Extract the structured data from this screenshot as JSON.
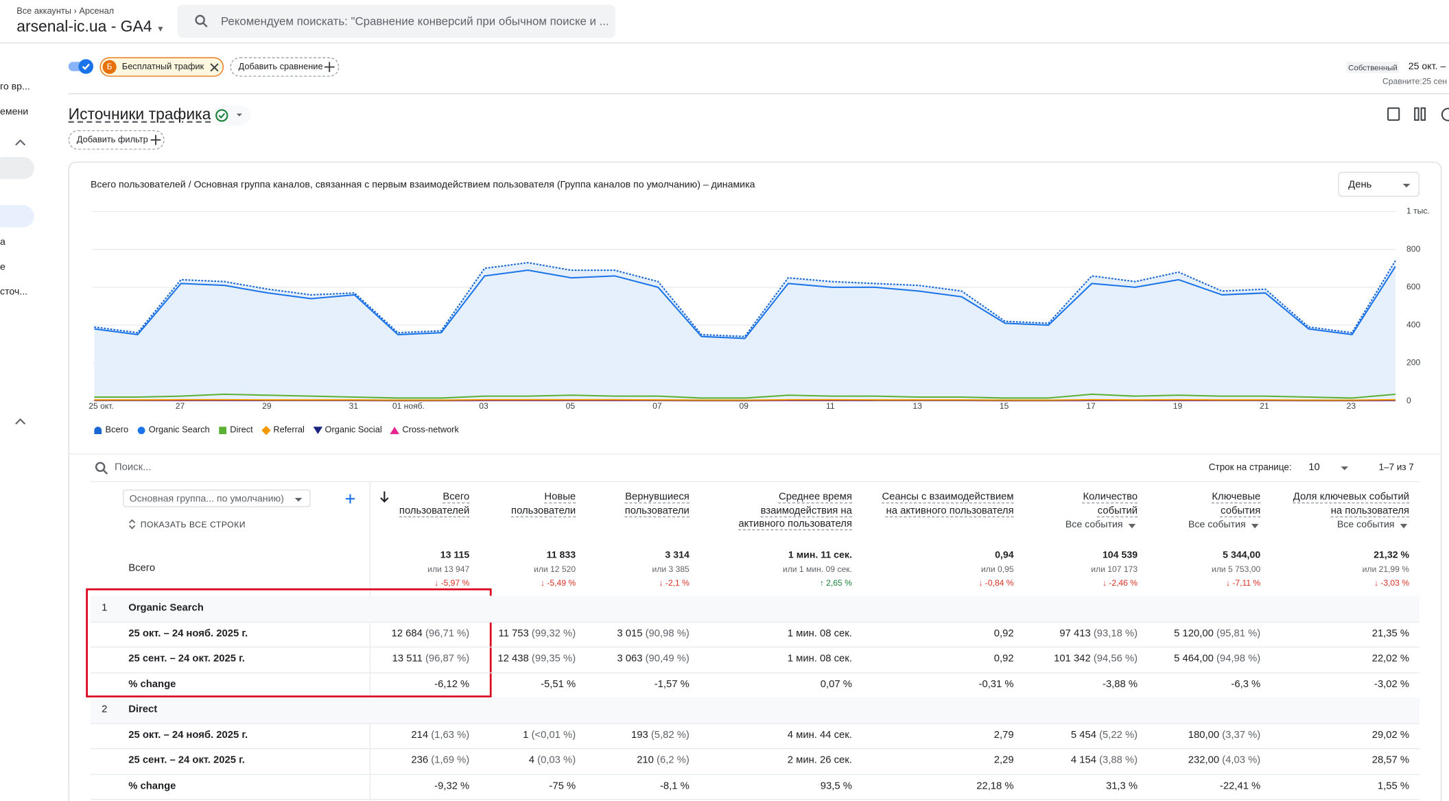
{
  "header": {
    "breadcrumb": [
      "Все аккаунты",
      "Арсенал"
    ],
    "property": "arsenal-ic.ua - GA4",
    "search_placeholder": "Рекомендуем поискать: \"Сравнение конверсий при обычном поиске и ..."
  },
  "sidebar": [
    "го вр...",
    "емени",
    "а",
    "е",
    "сточ..."
  ],
  "comparisons": {
    "badge": "Б",
    "chip": "Бесплатный трафик",
    "add": "Добавить сравнение"
  },
  "date_range": {
    "label": "Собственный",
    "range": "25 окт. –",
    "compare": "Сравните:25 сен"
  },
  "report": {
    "title": "Источники трафика",
    "add_filter": "Добавить фильтр"
  },
  "chart_data": {
    "type": "line",
    "title": "Всего пользователей / Основная группа каналов, связанная с первым взаимодействием пользователя (Группа каналов по умолчанию) – динамика",
    "granularity": "День",
    "categories": [
      "25 окт.",
      null,
      "27",
      null,
      "29",
      null,
      "31",
      "01 нояб.",
      null,
      "03",
      null,
      "05",
      null,
      "07",
      null,
      "09",
      null,
      "11",
      null,
      "13",
      null,
      "15",
      null,
      "17",
      null,
      "19",
      null,
      "21",
      null,
      "23",
      null
    ],
    "series": [
      {
        "name": "Всего",
        "color": "#1967d2",
        "marker": "drop",
        "dashed": true,
        "area": "#e5f0fc",
        "values": [
          390,
          360,
          640,
          630,
          590,
          560,
          570,
          360,
          370,
          700,
          730,
          690,
          690,
          630,
          350,
          340,
          650,
          630,
          620,
          610,
          580,
          420,
          410,
          660,
          630,
          680,
          580,
          590,
          390,
          360,
          740
        ]
      },
      {
        "name": "Organic Search",
        "color": "#1a73e8",
        "marker": "circle",
        "values": [
          380,
          350,
          620,
          610,
          570,
          540,
          560,
          350,
          360,
          660,
          690,
          650,
          660,
          600,
          340,
          330,
          620,
          600,
          600,
          580,
          550,
          410,
          400,
          620,
          600,
          640,
          560,
          570,
          380,
          350,
          710
        ]
      },
      {
        "name": "Direct",
        "color": "#5bb033",
        "marker": "square",
        "values": [
          20,
          20,
          25,
          35,
          30,
          25,
          20,
          15,
          15,
          25,
          25,
          30,
          25,
          25,
          15,
          15,
          30,
          25,
          25,
          20,
          20,
          15,
          15,
          35,
          25,
          30,
          25,
          25,
          20,
          15,
          35
        ]
      },
      {
        "name": "Referral",
        "color": "#f29900",
        "marker": "diamond",
        "values": [
          5,
          5,
          6,
          6,
          5,
          5,
          5,
          4,
          4,
          6,
          6,
          6,
          6,
          5,
          4,
          4,
          6,
          6,
          5,
          5,
          5,
          4,
          4,
          6,
          5,
          6,
          5,
          5,
          4,
          4,
          6
        ]
      },
      {
        "name": "Organic Social",
        "color": "#1a237e",
        "marker": "triangle-down",
        "values": [
          3,
          3,
          4,
          4,
          3,
          3,
          3,
          2,
          2,
          4,
          4,
          4,
          4,
          3,
          2,
          2,
          4,
          4,
          3,
          3,
          3,
          2,
          2,
          4,
          3,
          4,
          3,
          3,
          2,
          2,
          4
        ]
      },
      {
        "name": "Cross-network",
        "color": "#e52592",
        "marker": "triangle-up",
        "values": [
          2,
          2,
          2,
          2,
          2,
          2,
          2,
          1,
          1,
          2,
          2,
          2,
          2,
          2,
          1,
          1,
          2,
          2,
          2,
          2,
          2,
          1,
          1,
          2,
          2,
          2,
          2,
          2,
          1,
          1,
          2
        ]
      }
    ],
    "ylim": [
      0,
      1000
    ],
    "yticks": [
      0,
      200,
      400,
      600,
      800,
      {
        "value": 1000,
        "label": "1 тыс."
      }
    ],
    "grid": true,
    "legend": "bottom-left"
  },
  "table": {
    "search_placeholder": "Поиск...",
    "rows_per_page_label": "Строк на странице:",
    "rows_per_page": "10",
    "pagination": "1–7 из 7",
    "dimension": "Основная группа... по умолчанию)",
    "show_all": "ПОКАЗАТЬ ВСЕ СТРОКИ",
    "columns": [
      {
        "title": "Всего пользователей"
      },
      {
        "title": "Новые пользователи"
      },
      {
        "title": "Вернувшиеся пользователи"
      },
      {
        "title": "Среднее время взаимодействия на активного пользователя"
      },
      {
        "title": "Сеансы с взаимодействием на активного пользователя"
      },
      {
        "title": "Количество событий",
        "filter": "Все события"
      },
      {
        "title": "Ключевые события",
        "filter": "Все события"
      },
      {
        "title": "Доля ключевых событий на пользователя",
        "filter": "Все события"
      }
    ],
    "totals": {
      "label": "Всего",
      "cells": [
        {
          "value": "13 115",
          "compare": "или 13 947",
          "change": "↓ -5,97 %",
          "trend": "down"
        },
        {
          "value": "11 833",
          "compare": "или 12 520",
          "change": "↓ -5,49 %",
          "trend": "down"
        },
        {
          "value": "3 314",
          "compare": "или 3 385",
          "change": "↓ -2,1 %",
          "trend": "down"
        },
        {
          "value": "1 мин. 11 сек.",
          "compare": "или 1 мин. 09 сек.",
          "change": "↑ 2,65 %",
          "trend": "up"
        },
        {
          "value": "0,94",
          "compare": "или 0,95",
          "change": "↓ -0,84 %",
          "trend": "down"
        },
        {
          "value": "104 539",
          "compare": "или 107 173",
          "change": "↓ -2,46 %",
          "trend": "down"
        },
        {
          "value": "5 344,00",
          "compare": "или 5 753,00",
          "change": "↓ -7,11 %",
          "trend": "down"
        },
        {
          "value": "21,32 %",
          "compare": "или 21,99 %",
          "change": "↓ -3,03 %",
          "trend": "down"
        }
      ]
    },
    "groups": [
      {
        "index": 1,
        "name": "Organic Search",
        "rows": [
          {
            "label": "25 окт. – 24 нояб. 2025 г.",
            "cells": [
              [
                "12 684",
                "(96,71 %)"
              ],
              [
                "11 753",
                "(99,32 %)"
              ],
              [
                "3 015",
                "(90,98 %)"
              ],
              [
                "1 мин. 08 сек."
              ],
              [
                "0,92"
              ],
              [
                "97 413",
                "(93,18 %)"
              ],
              [
                "5 120,00",
                "(95,81 %)"
              ],
              [
                "21,35 %"
              ]
            ]
          },
          {
            "label": "25 сент. – 24 окт. 2025 г.",
            "cells": [
              [
                "13 511",
                "(96,87 %)"
              ],
              [
                "12 438",
                "(99,35 %)"
              ],
              [
                "3 063",
                "(90,49 %)"
              ],
              [
                "1 мин. 08 сек."
              ],
              [
                "0,92"
              ],
              [
                "101 342",
                "(94,56 %)"
              ],
              [
                "5 464,00",
                "(94,98 %)"
              ],
              [
                "22,02 %"
              ]
            ]
          },
          {
            "label": "% change",
            "cells": [
              [
                "-6,12 %"
              ],
              [
                "-5,51 %"
              ],
              [
                "-1,57 %"
              ],
              [
                "0,07 %"
              ],
              [
                "-0,31 %"
              ],
              [
                "-3,88 %"
              ],
              [
                "-6,3 %"
              ],
              [
                "-3,02 %"
              ]
            ]
          }
        ]
      },
      {
        "index": 2,
        "name": "Direct",
        "rows": [
          {
            "label": "25 окт. – 24 нояб. 2025 г.",
            "cells": [
              [
                "214",
                "(1,63 %)"
              ],
              [
                "1",
                "(<0,01 %)"
              ],
              [
                "193",
                "(5,82 %)"
              ],
              [
                "4 мин. 44 сек."
              ],
              [
                "2,79"
              ],
              [
                "5 454",
                "(5,22 %)"
              ],
              [
                "180,00",
                "(3,37 %)"
              ],
              [
                "29,02 %"
              ]
            ]
          },
          {
            "label": "25 сент. – 24 окт. 2025 г.",
            "cells": [
              [
                "236",
                "(1,69 %)"
              ],
              [
                "4",
                "(0,03 %)"
              ],
              [
                "210",
                "(6,2 %)"
              ],
              [
                "2 мин. 26 сек."
              ],
              [
                "2,29"
              ],
              [
                "4 154",
                "(3,88 %)"
              ],
              [
                "232,00",
                "(4,03 %)"
              ],
              [
                "28,57 %"
              ]
            ]
          },
          {
            "label": "% change",
            "cells": [
              [
                "-9,32 %"
              ],
              [
                "-75 %"
              ],
              [
                "-8,1 %"
              ],
              [
                "93,5 %"
              ],
              [
                "22,18 %"
              ],
              [
                "31,3 %"
              ],
              [
                "-22,41 %"
              ],
              [
                "1,55 %"
              ]
            ]
          }
        ]
      }
    ]
  }
}
